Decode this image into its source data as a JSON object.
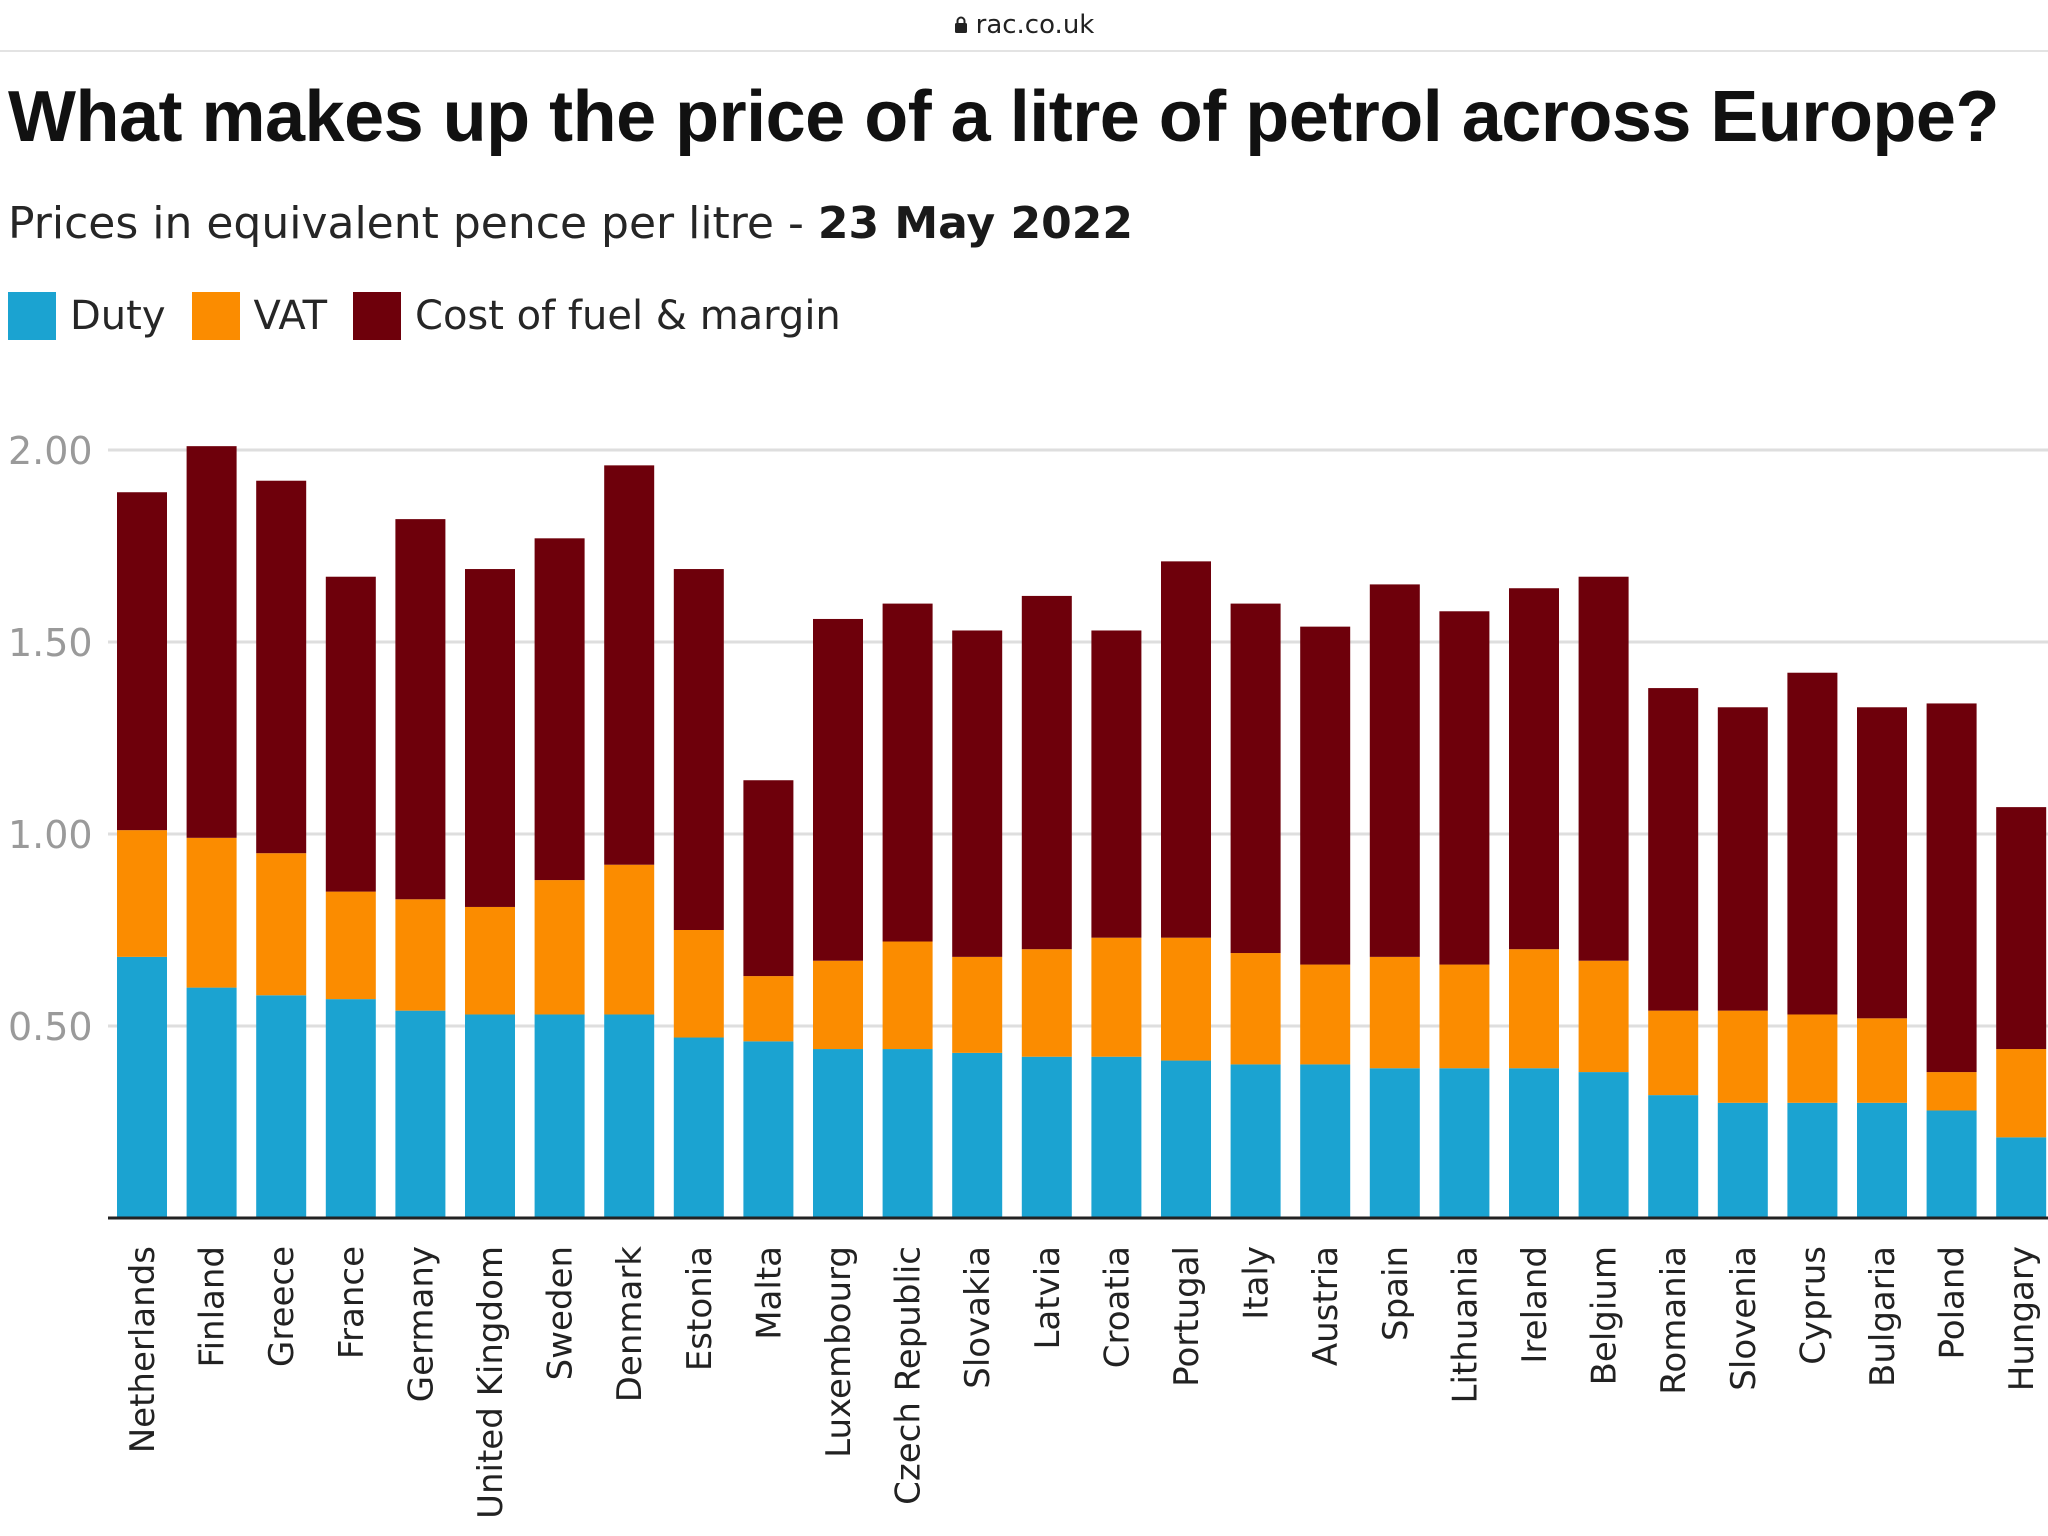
{
  "browser": {
    "url": "rac.co.uk",
    "lock_icon": "lock-icon"
  },
  "chart_data": {
    "type": "bar",
    "stacked": true,
    "title": "What makes up the price of a litre of petrol across Europe?",
    "subtitle_prefix": "Prices in equivalent pence per litre - ",
    "subtitle_date": "23 May 2022",
    "categories": [
      "Netherlands",
      "Finland",
      "Greece",
      "France",
      "Germany",
      "United Kingdom",
      "Sweden",
      "Denmark",
      "Estonia",
      "Malta",
      "Luxembourg",
      "Czech Republic",
      "Slovakia",
      "Latvia",
      "Croatia",
      "Portugal",
      "Italy",
      "Austria",
      "Spain",
      "Lithuania",
      "Ireland",
      "Belgium",
      "Romania",
      "Slovenia",
      "Cyprus",
      "Bulgaria",
      "Poland",
      "Hungary"
    ],
    "series": [
      {
        "name": "Duty",
        "color": "#1ba3d1",
        "values": [
          0.68,
          0.6,
          0.58,
          0.57,
          0.54,
          0.53,
          0.53,
          0.53,
          0.47,
          0.46,
          0.44,
          0.44,
          0.43,
          0.42,
          0.42,
          0.41,
          0.4,
          0.4,
          0.39,
          0.39,
          0.39,
          0.38,
          0.32,
          0.3,
          0.3,
          0.3,
          0.28,
          0.21
        ]
      },
      {
        "name": "VAT",
        "color": "#fb8c00",
        "values": [
          0.33,
          0.39,
          0.37,
          0.28,
          0.29,
          0.28,
          0.35,
          0.39,
          0.28,
          0.17,
          0.23,
          0.28,
          0.25,
          0.28,
          0.31,
          0.32,
          0.29,
          0.26,
          0.29,
          0.27,
          0.31,
          0.29,
          0.22,
          0.24,
          0.23,
          0.22,
          0.1,
          0.23
        ]
      },
      {
        "name": "Cost of fuel & margin",
        "color": "#6e000b",
        "values": [
          0.88,
          1.02,
          0.97,
          0.82,
          0.99,
          0.88,
          0.89,
          1.04,
          0.94,
          0.51,
          0.89,
          0.88,
          0.85,
          0.92,
          0.8,
          0.98,
          0.91,
          0.88,
          0.97,
          0.92,
          0.94,
          1.0,
          0.84,
          0.79,
          0.89,
          0.81,
          0.96,
          0.63
        ]
      }
    ],
    "yticks": [
      "0.50",
      "1.00",
      "1.50",
      "2.00"
    ],
    "ylim": [
      0,
      2.0
    ],
    "grid": true,
    "legend_position": "top-left"
  }
}
